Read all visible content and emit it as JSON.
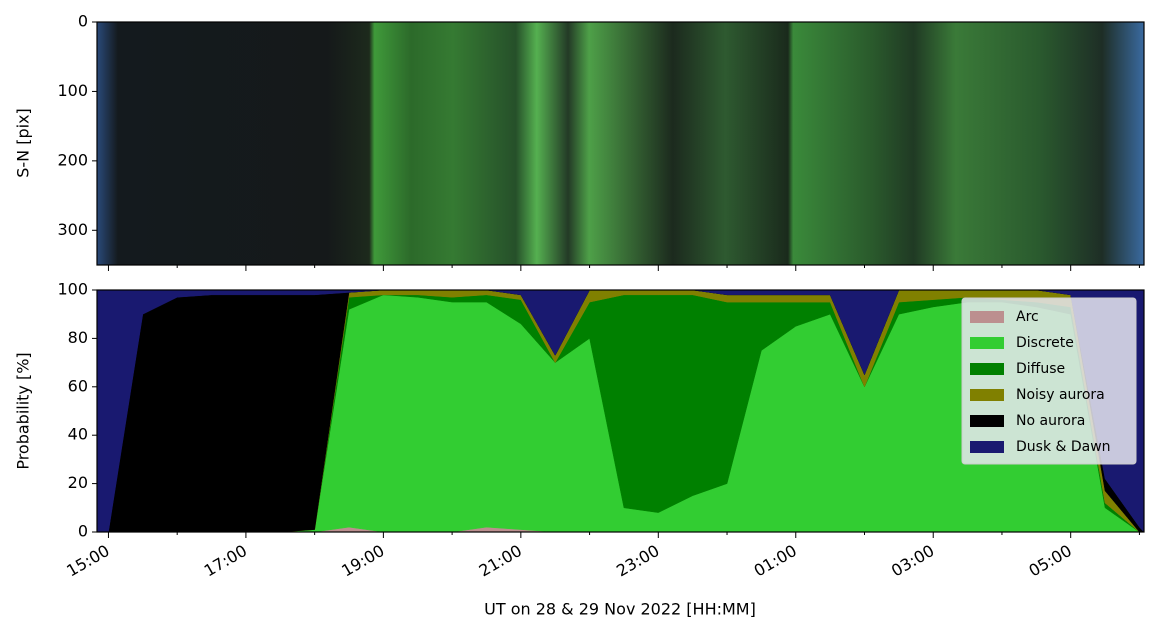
{
  "chart_data": [
    {
      "type": "image",
      "ylabel": "S-N [pix]",
      "ylim": [
        350,
        0
      ],
      "yticks": [
        0,
        100,
        200,
        300
      ]
    },
    {
      "type": "stacked_area",
      "ylabel": "Probability [%]",
      "xlabel": "UT on 28 & 29 Nov 2022 [HH:MM]",
      "xlim": [
        "2022-11-28T14:50",
        "2022-11-29T06:04"
      ],
      "xticks": [
        {
          "value": "2022-11-28T15:00",
          "label": "15:00"
        },
        {
          "value": "2022-11-28T17:00",
          "label": "17:00"
        },
        {
          "value": "2022-11-28T19:00",
          "label": "19:00"
        },
        {
          "value": "2022-11-28T21:00",
          "label": "21:00"
        },
        {
          "value": "2022-11-28T23:00",
          "label": "23:00"
        },
        {
          "value": "2022-11-29T01:00",
          "label": "01:00"
        },
        {
          "value": "2022-11-29T03:00",
          "label": "03:00"
        },
        {
          "value": "2022-11-29T05:00",
          "label": "05:00"
        }
      ],
      "xminorticks": [
        "2022-11-28T16:00",
        "2022-11-28T18:00",
        "2022-11-28T20:00",
        "2022-11-28T22:00",
        "2022-11-29T00:00",
        "2022-11-29T02:00",
        "2022-11-29T04:00",
        "2022-11-29T06:00"
      ],
      "ylim": [
        0,
        100
      ],
      "yticks": [
        0,
        20,
        40,
        60,
        80,
        100
      ],
      "legend": "upper right",
      "x": [
        "2022-11-28T14:50",
        "2022-11-28T15:00",
        "2022-11-28T15:30",
        "2022-11-28T16:00",
        "2022-11-28T16:30",
        "2022-11-28T17:00",
        "2022-11-28T17:30",
        "2022-11-28T18:00",
        "2022-11-28T18:30",
        "2022-11-28T19:00",
        "2022-11-28T19:30",
        "2022-11-28T20:00",
        "2022-11-28T20:30",
        "2022-11-28T21:00",
        "2022-11-28T21:30",
        "2022-11-28T22:00",
        "2022-11-28T22:30",
        "2022-11-28T23:00",
        "2022-11-28T23:30",
        "2022-11-29T00:00",
        "2022-11-29T00:30",
        "2022-11-29T01:00",
        "2022-11-29T01:30",
        "2022-11-29T02:00",
        "2022-11-29T02:30",
        "2022-11-29T03:00",
        "2022-11-29T03:30",
        "2022-11-29T04:00",
        "2022-11-29T04:30",
        "2022-11-29T05:00",
        "2022-11-29T05:30",
        "2022-11-29T06:00",
        "2022-11-29T06:04"
      ],
      "series": [
        {
          "name": "Arc",
          "color": "#bc8f8f",
          "values": [
            0,
            0,
            0,
            0,
            0,
            0,
            0,
            0,
            2,
            0,
            0,
            0,
            2,
            1,
            0,
            0,
            0,
            0,
            0,
            0,
            0,
            0,
            0,
            0,
            0,
            0,
            0,
            0,
            0,
            0,
            0,
            0,
            0
          ]
        },
        {
          "name": "Discrete",
          "color": "#32cd32",
          "values": [
            0,
            0,
            0,
            0,
            0,
            0,
            0,
            1,
            90,
            98,
            97,
            95,
            93,
            85,
            70,
            80,
            10,
            8,
            15,
            20,
            75,
            85,
            90,
            60,
            90,
            93,
            95,
            95,
            93,
            90,
            10,
            0,
            0
          ]
        },
        {
          "name": "Diffuse",
          "color": "#008000",
          "values": [
            0,
            0,
            0,
            0,
            0,
            0,
            0,
            0,
            5,
            0,
            1,
            2,
            3,
            10,
            0,
            15,
            88,
            90,
            83,
            75,
            20,
            10,
            5,
            0,
            5,
            3,
            2,
            1,
            2,
            3,
            2,
            0,
            0
          ]
        },
        {
          "name": "Noisy aurora",
          "color": "#808000",
          "values": [
            0,
            0,
            0,
            0,
            0,
            0,
            0,
            0,
            2,
            2,
            2,
            3,
            2,
            2,
            3,
            5,
            2,
            2,
            2,
            3,
            3,
            3,
            3,
            5,
            5,
            4,
            3,
            4,
            5,
            5,
            5,
            0,
            0
          ]
        },
        {
          "name": "No aurora",
          "color": "#000000",
          "values": [
            0,
            0,
            90,
            97,
            98,
            98,
            98,
            97,
            0,
            0,
            0,
            0,
            0,
            0,
            0,
            0,
            0,
            0,
            0,
            0,
            0,
            0,
            0,
            0,
            0,
            0,
            0,
            0,
            0,
            0,
            5,
            2,
            0
          ]
        },
        {
          "name": "Dusk & Dawn",
          "color": "#191970",
          "values": [
            100,
            100,
            10,
            3,
            2,
            2,
            2,
            2,
            1,
            0,
            0,
            0,
            0,
            2,
            27,
            0,
            0,
            0,
            0,
            2,
            2,
            2,
            2,
            35,
            0,
            0,
            0,
            0,
            0,
            2,
            78,
            98,
            100
          ]
        }
      ]
    }
  ]
}
